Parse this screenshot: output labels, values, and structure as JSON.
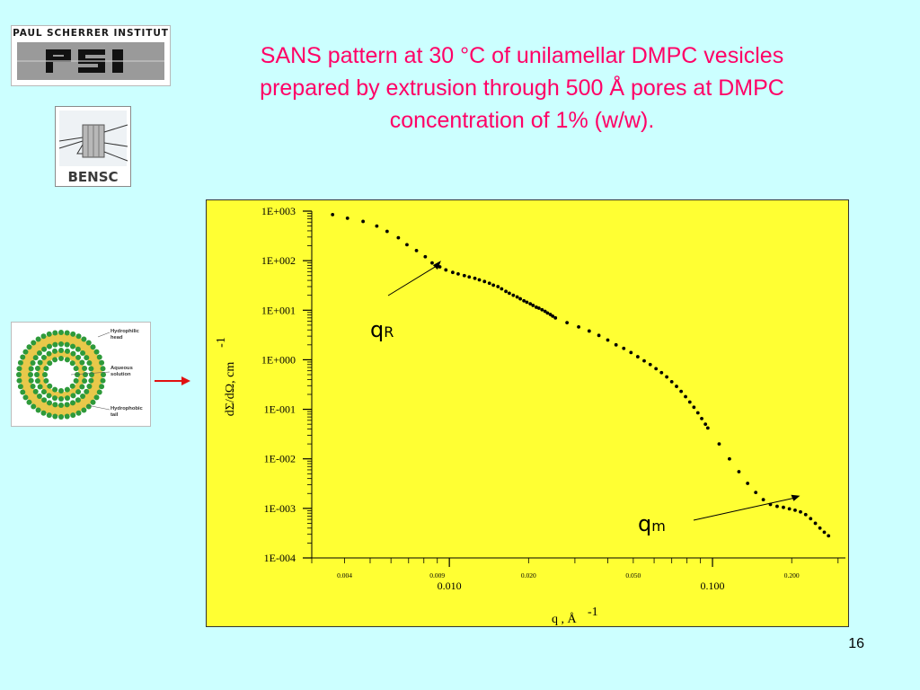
{
  "slide": {
    "title_lines": [
      "SANS pattern at 30 °C of unilamellar DMPC vesicles",
      "prepared by extrusion through 500 Å pores at DMPC",
      "concentration of 1% (w/w)."
    ],
    "page_number": "16"
  },
  "logos": {
    "psi": {
      "name": "PAUL SCHERRER INSTITUT",
      "mark": "PSI"
    },
    "bensc": {
      "name": "BENSC"
    }
  },
  "vesicle_diagram": {
    "labels": [
      "Hydrophilic head",
      "Aqueous solution",
      "Hydrophobic tail"
    ],
    "colors": {
      "head": "#2e9a3a",
      "tail": "#e8c84a"
    }
  },
  "chart_data": {
    "type": "scatter",
    "x_scale": "log",
    "y_scale": "log",
    "xlim": [
      0.003,
      0.32
    ],
    "ylim": [
      0.0001,
      1000
    ],
    "ylabel": "dΣ/dΩ, cm",
    "ylabel_exponent": "-1",
    "xlabel": "q  , Å",
    "xlabel_exponent": "-1",
    "y_ticks": [
      "1E+003",
      "1E+002",
      "1E+001",
      "1E+000",
      "1E-001",
      "1E-002",
      "1E-003",
      "1E-004"
    ],
    "x_minor_labels": [
      "0.004",
      "0.009",
      "0.020",
      "0.050",
      "0.200"
    ],
    "x_major_labels": [
      "0.010",
      "0.100"
    ],
    "annotations": [
      {
        "text": "q",
        "sub": "R",
        "x": 0.0093,
        "y": 100
      },
      {
        "text": "q",
        "sub": "m",
        "x": 0.215,
        "y": 0.0018
      }
    ],
    "background": "#ffff33",
    "marker_color": "#000000",
    "series": [
      {
        "x": [
          0.0036,
          0.0041,
          0.0047,
          0.0053,
          0.0058,
          0.0064,
          0.0069,
          0.0075,
          0.0081,
          0.0086,
          0.0092,
          0.0097,
          0.0103,
          0.0108,
          0.0114,
          0.0119,
          0.0125,
          0.013,
          0.0136,
          0.0142,
          0.0147,
          0.0153,
          0.0158,
          0.0164,
          0.0169,
          0.0175,
          0.0181,
          0.0186,
          0.0192,
          0.0197,
          0.0203,
          0.0208,
          0.0214,
          0.0219,
          0.0225,
          0.0231,
          0.0236,
          0.0242,
          0.0247,
          0.0253,
          0.028,
          0.031,
          0.034,
          0.037,
          0.04,
          0.043,
          0.046,
          0.049,
          0.052,
          0.055,
          0.058,
          0.061,
          0.064,
          0.067,
          0.07,
          0.073,
          0.076,
          0.079,
          0.082,
          0.085,
          0.088,
          0.091,
          0.094,
          0.096,
          0.106,
          0.116,
          0.126,
          0.136,
          0.146,
          0.156,
          0.166,
          0.176,
          0.186,
          0.196,
          0.206,
          0.216,
          0.226,
          0.236,
          0.246,
          0.256,
          0.266,
          0.276
        ],
        "y": [
          850,
          720,
          620,
          500,
          390,
          290,
          210,
          160,
          120,
          90,
          75,
          65,
          58,
          54,
          50,
          47,
          44,
          41,
          38,
          35,
          32,
          30,
          27,
          24,
          22,
          20,
          18.5,
          17,
          15.5,
          14.5,
          13.5,
          12.5,
          11.5,
          11,
          10.2,
          9.5,
          8.8,
          8.2,
          7.6,
          7.0,
          5.6,
          4.6,
          3.8,
          3.1,
          2.5,
          2.0,
          1.7,
          1.4,
          1.15,
          0.95,
          0.8,
          0.66,
          0.55,
          0.45,
          0.36,
          0.29,
          0.23,
          0.18,
          0.14,
          0.11,
          0.085,
          0.065,
          0.05,
          0.042,
          0.02,
          0.01,
          0.0055,
          0.0032,
          0.0021,
          0.0015,
          0.0012,
          0.0011,
          0.00105,
          0.00098,
          0.00092,
          0.00085,
          0.00075,
          0.00062,
          0.0005,
          0.0004,
          0.00033,
          0.00028
        ]
      }
    ]
  }
}
